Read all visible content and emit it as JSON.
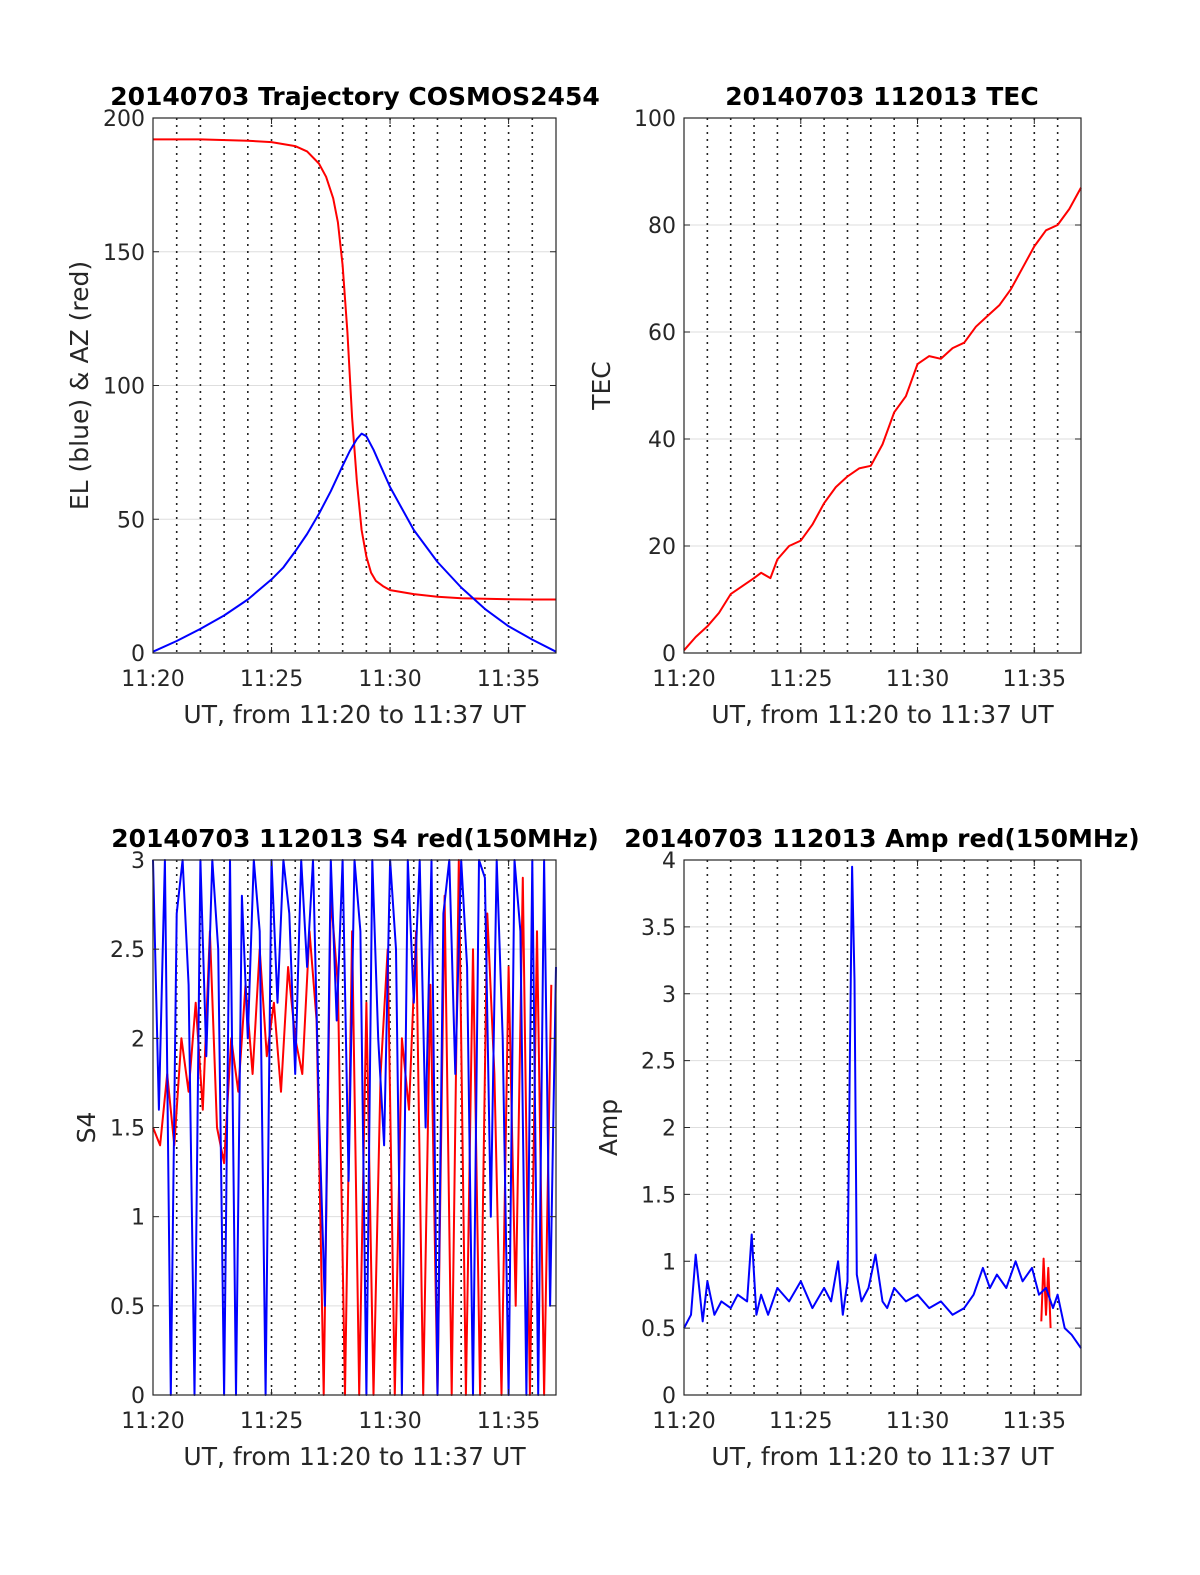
{
  "chart_data": [
    {
      "type": "line",
      "title": "20140703 Trajectory COSMOS2454",
      "xlabel": "UT, from 11:20 to 11:37 UT",
      "ylabel": "EL (blue) & AZ (red)",
      "x_ticks": [
        "11:20",
        "11:25",
        "11:30",
        "11:35"
      ],
      "y_ticks": [
        "0",
        "50",
        "100",
        "150",
        "200"
      ],
      "xlim": [
        0,
        17
      ],
      "ylim": [
        0,
        200
      ],
      "grid": "x dotted, y solid light",
      "series": [
        {
          "color": "#ff0000",
          "x": [
            0,
            2,
            4,
            5,
            6,
            6.5,
            7,
            7.3,
            7.6,
            7.8,
            8.0,
            8.2,
            8.4,
            8.6,
            8.8,
            9.0,
            9.2,
            9.4,
            9.7,
            10,
            11,
            12,
            13,
            14,
            15,
            16,
            17
          ],
          "values": [
            192,
            192,
            191.5,
            191,
            189.5,
            187.5,
            183,
            178,
            170,
            161,
            145,
            120,
            88,
            64,
            46,
            36,
            30,
            27,
            25,
            23.5,
            22,
            21,
            20.5,
            20.3,
            20.1,
            20,
            20
          ]
        },
        {
          "color": "#0000ff",
          "x": [
            0,
            1,
            2,
            3,
            4,
            5,
            5.5,
            6,
            6.5,
            7,
            7.5,
            8,
            8.3,
            8.6,
            8.8,
            9.0,
            9.3,
            9.6,
            10,
            10.5,
            11,
            12,
            13,
            14,
            15,
            16,
            17
          ],
          "values": [
            0.5,
            4.5,
            9,
            14,
            20,
            27.5,
            32,
            38,
            44.5,
            52,
            60.5,
            70,
            75.5,
            80,
            82,
            81,
            76,
            70,
            62,
            54,
            46,
            34,
            24.5,
            16.5,
            10,
            5,
            0.5
          ]
        }
      ]
    },
    {
      "type": "line",
      "title": "20140703 112013 TEC",
      "xlabel": "UT, from 11:20 to 11:37 UT",
      "ylabel": "TEC",
      "x_ticks": [
        "11:20",
        "11:25",
        "11:30",
        "11:35"
      ],
      "y_ticks": [
        "0",
        "20",
        "40",
        "60",
        "80",
        "100"
      ],
      "xlim": [
        0,
        17
      ],
      "ylim": [
        0,
        100
      ],
      "grid": "x dotted, y solid light",
      "series": [
        {
          "color": "#ff0000",
          "x": [
            0,
            0.5,
            1,
            1.5,
            2,
            2.5,
            3,
            3.3,
            3.7,
            4,
            4.5,
            5,
            5.5,
            6,
            6.5,
            7,
            7.5,
            8,
            8.5,
            9,
            9.5,
            10,
            10.5,
            11,
            11.5,
            12,
            12.5,
            13,
            13.5,
            14,
            14.5,
            15,
            15.5,
            16,
            16.5,
            17
          ],
          "values": [
            0.5,
            3,
            5,
            7.5,
            11,
            12.5,
            14,
            15,
            14,
            17.5,
            20,
            21,
            24,
            28,
            31,
            33,
            34.5,
            35,
            39,
            45,
            48,
            54,
            55.5,
            55,
            57,
            58,
            61,
            63,
            65,
            68,
            72,
            76,
            79,
            80,
            83,
            87
          ]
        }
      ]
    },
    {
      "type": "line",
      "title": "20140703 112013 S4 red(150MHz)",
      "xlabel": "UT, from 11:20 to 11:37 UT",
      "ylabel": "S4",
      "x_ticks": [
        "11:20",
        "11:25",
        "11:30",
        "11:35"
      ],
      "y_ticks": [
        "0",
        "0.5",
        "1",
        "1.5",
        "2",
        "2.5",
        "3"
      ],
      "xlim": [
        0,
        17
      ],
      "ylim": [
        0,
        3
      ],
      "grid": "x dotted, y solid light",
      "series": [
        {
          "color": "#ff0000",
          "x": [
            0,
            0.3,
            0.6,
            0.9,
            1.2,
            1.5,
            1.8,
            2.1,
            2.4,
            2.7,
            3.0,
            3.3,
            3.6,
            3.9,
            4.2,
            4.5,
            4.8,
            5.1,
            5.4,
            5.7,
            6.0,
            6.3,
            6.6,
            6.9,
            7.2,
            7.5,
            7.8,
            8.1,
            8.4,
            8.7,
            9.0,
            9.3,
            9.6,
            9.9,
            10.2,
            10.5,
            10.8,
            11.1,
            11.4,
            11.7,
            12.0,
            12.3,
            12.6,
            12.9,
            13.2,
            13.5,
            13.8,
            14.1,
            14.4,
            14.7,
            15.0,
            15.3,
            15.6,
            15.9,
            16.2,
            16.5,
            16.8
          ],
          "values": [
            1.5,
            1.4,
            1.8,
            1.4,
            2.0,
            1.7,
            2.2,
            1.6,
            2.6,
            1.5,
            1.3,
            2.0,
            1.7,
            2.3,
            1.8,
            2.5,
            1.9,
            2.2,
            1.7,
            2.4,
            2.0,
            1.8,
            2.6,
            2.1,
            0,
            2.8,
            2.3,
            0,
            2.6,
            0,
            2.2,
            0,
            1.8,
            2.5,
            0,
            2.0,
            1.6,
            2.6,
            0,
            2.3,
            0,
            2.8,
            0,
            3.0,
            0,
            2.5,
            0,
            2.7,
            1.8,
            0,
            2.4,
            0.5,
            2.9,
            0,
            2.6,
            0,
            2.3
          ]
        },
        {
          "color": "#0000ff",
          "x": [
            0,
            0.25,
            0.5,
            0.75,
            1.0,
            1.25,
            1.5,
            1.75,
            2.0,
            2.25,
            2.5,
            2.75,
            3.0,
            3.25,
            3.5,
            3.75,
            4.0,
            4.25,
            4.5,
            4.75,
            5.0,
            5.25,
            5.5,
            5.75,
            6.0,
            6.25,
            6.5,
            6.75,
            7.0,
            7.25,
            7.5,
            7.75,
            8.0,
            8.25,
            8.5,
            8.75,
            9.0,
            9.25,
            9.5,
            9.75,
            10.0,
            10.25,
            10.5,
            10.75,
            11.0,
            11.25,
            11.5,
            11.75,
            12.0,
            12.25,
            12.5,
            12.75,
            13.0,
            13.25,
            13.5,
            13.75,
            14.0,
            14.25,
            14.5,
            14.75,
            15.0,
            15.25,
            15.5,
            15.75,
            16.0,
            16.25,
            16.5,
            16.75,
            17.0
          ],
          "values": [
            3.0,
            1.6,
            3.0,
            0,
            2.7,
            3.0,
            2.3,
            0,
            3.0,
            1.9,
            3.0,
            2.5,
            0,
            3.0,
            0,
            2.8,
            2.0,
            3.0,
            2.6,
            0,
            3.0,
            2.2,
            3.0,
            2.7,
            1.8,
            3.0,
            2.4,
            3.0,
            1.6,
            0.5,
            3.0,
            2.1,
            3.0,
            1.2,
            3.0,
            2.6,
            0,
            3.0,
            2.0,
            1.4,
            3.0,
            2.5,
            0,
            3.0,
            2.2,
            3.0,
            1.5,
            3.0,
            0,
            2.7,
            3.0,
            1.8,
            3.0,
            2.4,
            0,
            3.0,
            2.9,
            1.0,
            3.0,
            2.0,
            0,
            3.0,
            2.6,
            0,
            3.0,
            0,
            3.0,
            0.5,
            2.4
          ]
        }
      ]
    },
    {
      "type": "line",
      "title": "20140703 112013 Amp red(150MHz)",
      "xlabel": "UT, from 11:20 to 11:37 UT",
      "ylabel": "Amp",
      "x_ticks": [
        "11:20",
        "11:25",
        "11:30",
        "11:35"
      ],
      "y_ticks": [
        "0",
        "0.5",
        "1",
        "1.5",
        "2",
        "2.5",
        "3",
        "3.5",
        "4"
      ],
      "xlim": [
        0,
        17
      ],
      "ylim": [
        0,
        4
      ],
      "grid": "x dotted, y solid light",
      "series": [
        {
          "color": "#ff0000",
          "x": [
            15.3,
            15.4,
            15.5,
            15.6,
            15.7
          ],
          "values": [
            0.55,
            1.02,
            0.6,
            0.95,
            0.5
          ]
        },
        {
          "color": "#0000ff",
          "x": [
            0,
            0.3,
            0.5,
            0.8,
            1.0,
            1.3,
            1.6,
            2.0,
            2.3,
            2.7,
            2.9,
            3.1,
            3.3,
            3.6,
            4.0,
            4.5,
            5.0,
            5.5,
            6.0,
            6.3,
            6.6,
            6.8,
            7.0,
            7.1,
            7.2,
            7.3,
            7.4,
            7.6,
            7.9,
            8.2,
            8.5,
            8.7,
            9.0,
            9.5,
            10.0,
            10.5,
            11.0,
            11.5,
            12.0,
            12.4,
            12.8,
            13.1,
            13.4,
            13.8,
            14.2,
            14.5,
            14.9,
            15.2,
            15.5,
            15.8,
            16.0,
            16.3,
            16.6,
            17.0
          ],
          "values": [
            0.5,
            0.6,
            1.05,
            0.55,
            0.85,
            0.6,
            0.7,
            0.65,
            0.75,
            0.7,
            1.2,
            0.6,
            0.75,
            0.6,
            0.8,
            0.7,
            0.85,
            0.65,
            0.8,
            0.7,
            1.0,
            0.6,
            0.85,
            2.5,
            3.95,
            3.1,
            0.9,
            0.7,
            0.8,
            1.05,
            0.7,
            0.65,
            0.8,
            0.7,
            0.75,
            0.65,
            0.7,
            0.6,
            0.65,
            0.75,
            0.95,
            0.8,
            0.9,
            0.8,
            1.0,
            0.85,
            0.95,
            0.75,
            0.8,
            0.65,
            0.75,
            0.5,
            0.45,
            0.35
          ]
        }
      ]
    }
  ]
}
